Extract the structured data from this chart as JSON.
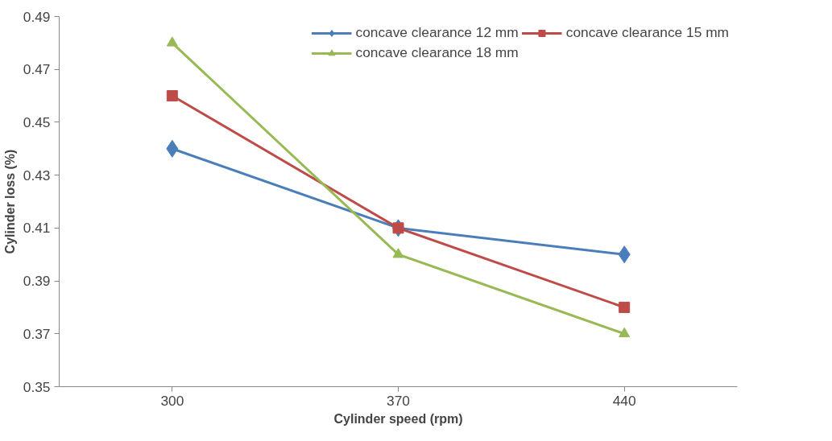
{
  "chart_data": {
    "type": "line",
    "xlabel": "Cylinder speed (rpm)",
    "ylabel": "Cylinder loss (%)",
    "categories": [
      "300",
      "370",
      "440"
    ],
    "series": [
      {
        "name": "concave clearance 12 mm",
        "color": "#4a7ebb",
        "marker": "diamond",
        "values": [
          0.44,
          0.41,
          0.4
        ]
      },
      {
        "name": "concave clearance 15 mm",
        "color": "#be4b48",
        "marker": "square",
        "values": [
          0.46,
          0.41,
          0.38
        ]
      },
      {
        "name": "concave clearance 18 mm",
        "color": "#98b954",
        "marker": "triangle",
        "values": [
          0.48,
          0.4,
          0.37
        ]
      }
    ],
    "ylim": [
      0.35,
      0.49
    ],
    "yticks": [
      0.35,
      0.37,
      0.39,
      0.41,
      0.43,
      0.45,
      0.47,
      0.49
    ],
    "grid": false,
    "legend": "top",
    "line_style": "solid"
  }
}
